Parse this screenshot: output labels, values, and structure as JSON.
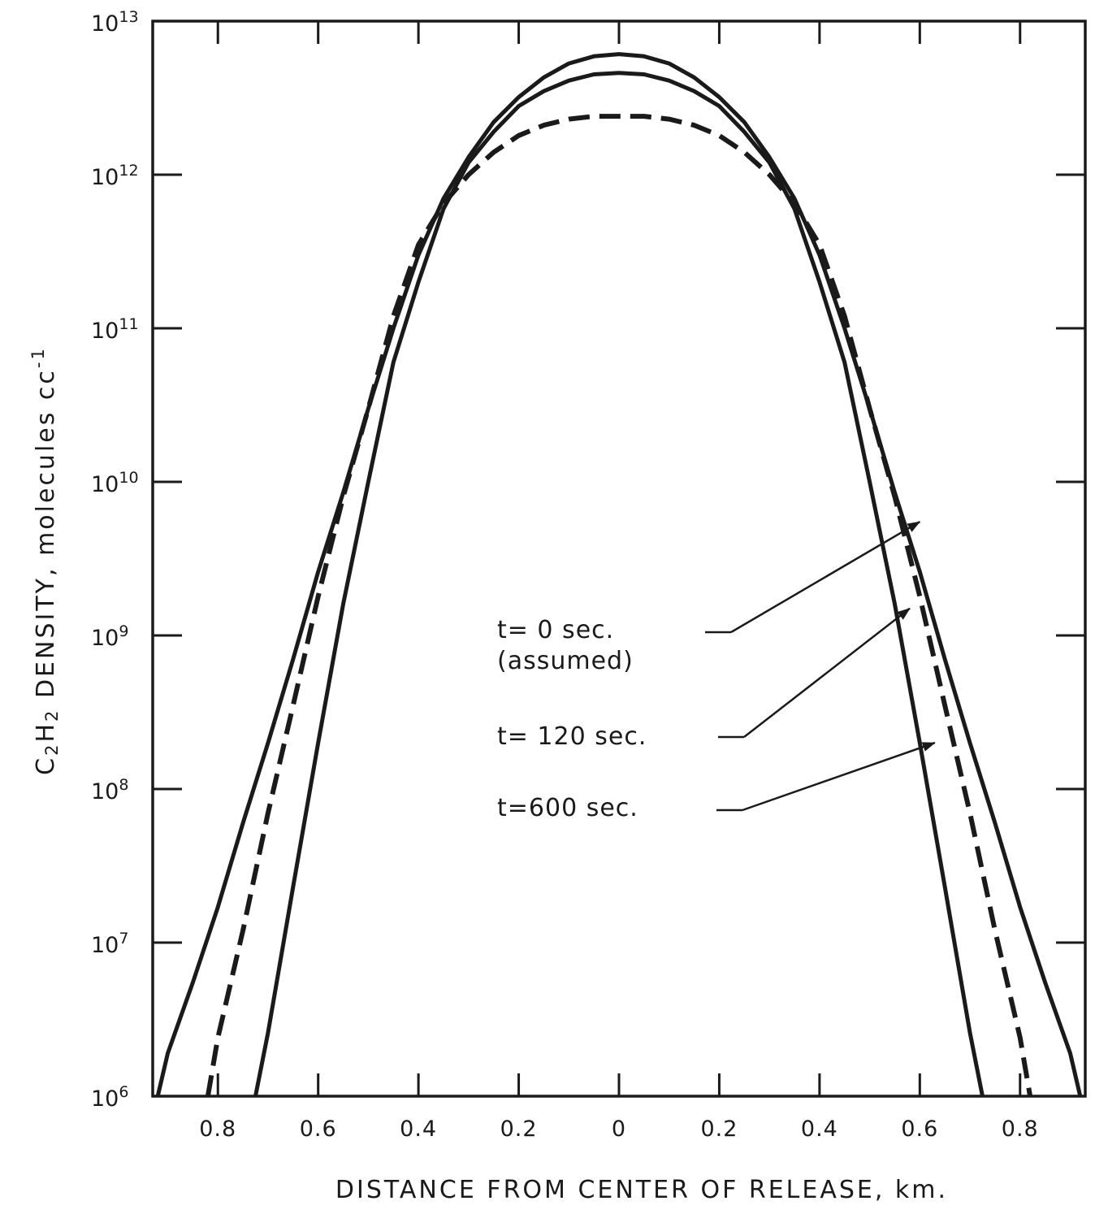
{
  "chart_data": {
    "type": "line",
    "title": "",
    "xlabel": "DISTANCE FROM CENTER OF RELEASE, km.",
    "ylabel": "C2H2 DENSITY, molecules cc-1",
    "ylabel_parts": {
      "c": "C",
      "sub1": "2",
      "h": "H",
      "sub2": "2",
      "rest": " DENSITY, molecules cc",
      "sup": "-1"
    },
    "x_scale": "linear",
    "y_scale": "log",
    "xlim": [
      -0.93,
      0.93
    ],
    "ylim": [
      1000000,
      10000000000000
    ],
    "x_tick_values": [
      -0.8,
      -0.6,
      -0.4,
      -0.2,
      0,
      0.2,
      0.4,
      0.6,
      0.8
    ],
    "x_tick_labels": [
      "0.8",
      "0.6",
      "0.4",
      "0.2",
      "0",
      "0.2",
      "0.4",
      "0.6",
      "0.8"
    ],
    "y_tick_labels": [
      {
        "base": "10",
        "exp": "6"
      },
      {
        "base": "10",
        "exp": "7"
      },
      {
        "base": "10",
        "exp": "8"
      },
      {
        "base": "10",
        "exp": "9"
      },
      {
        "base": "10",
        "exp": "10"
      },
      {
        "base": "10",
        "exp": "11"
      },
      {
        "base": "10",
        "exp": "12"
      },
      {
        "base": "10",
        "exp": "13"
      }
    ],
    "grid": false,
    "legend": "none",
    "series": [
      {
        "label": "t= 0 sec. (assumed)",
        "style": "solid",
        "x": [
          -0.725,
          -0.7,
          -0.65,
          -0.6,
          -0.55,
          -0.5,
          -0.45,
          -0.4,
          -0.35,
          -0.3,
          -0.25,
          -0.2,
          -0.15,
          -0.1,
          -0.05,
          0,
          0.05,
          0.1,
          0.15,
          0.2,
          0.25,
          0.3,
          0.35,
          0.4,
          0.45,
          0.5,
          0.55,
          0.6,
          0.65,
          0.7,
          0.725
        ],
        "y": [
          1000000,
          2600000,
          23000000,
          200000000,
          1600000000,
          10000000000,
          60000000000,
          200000000000,
          600000000000,
          1200000000000,
          1900000000000,
          2800000000000,
          3500000000000,
          4100000000000,
          4500000000000,
          4600000000000,
          4500000000000,
          4100000000000,
          3500000000000,
          2800000000000,
          1900000000000,
          1200000000000,
          600000000000,
          200000000000,
          60000000000,
          10000000000,
          1600000000,
          200000000,
          23000000,
          2600000,
          1000000
        ]
      },
      {
        "label": "t= 120 sec.",
        "style": "solid",
        "x": [
          -0.92,
          -0.9,
          -0.85,
          -0.8,
          -0.75,
          -0.7,
          -0.65,
          -0.6,
          -0.55,
          -0.5,
          -0.45,
          -0.4,
          -0.35,
          -0.3,
          -0.25,
          -0.2,
          -0.15,
          -0.1,
          -0.05,
          0,
          0.05,
          0.1,
          0.15,
          0.2,
          0.25,
          0.3,
          0.35,
          0.4,
          0.45,
          0.5,
          0.55,
          0.6,
          0.65,
          0.7,
          0.75,
          0.8,
          0.85,
          0.9,
          0.92
        ],
        "y": [
          1000000,
          1900000,
          5500000,
          17000000,
          60000000,
          200000000,
          700000000,
          2600000000,
          8500000000,
          30000000000,
          100000000000,
          300000000000,
          700000000000,
          1300000000000,
          2200000000000,
          3200000000000,
          4300000000000,
          5300000000000,
          5900000000000,
          6100000000000,
          5900000000000,
          5300000000000,
          4300000000000,
          3200000000000,
          2200000000000,
          1300000000000,
          700000000000,
          300000000000,
          100000000000,
          30000000000,
          8500000000,
          2600000000,
          700000000,
          200000000,
          60000000,
          17000000,
          5500000,
          1900000,
          1000000
        ]
      },
      {
        "label": "t=600 sec.",
        "style": "dashed",
        "x": [
          -0.82,
          -0.8,
          -0.75,
          -0.7,
          -0.65,
          -0.6,
          -0.55,
          -0.5,
          -0.45,
          -0.4,
          -0.35,
          -0.3,
          -0.25,
          -0.2,
          -0.15,
          -0.1,
          -0.05,
          0,
          0.05,
          0.1,
          0.15,
          0.2,
          0.25,
          0.3,
          0.35,
          0.4,
          0.45,
          0.5,
          0.55,
          0.6,
          0.65,
          0.7,
          0.75,
          0.8,
          0.82
        ],
        "y": [
          1000000,
          2400000,
          12000000,
          70000000,
          350000000,
          1800000000,
          8000000000,
          30000000000,
          120000000000,
          350000000000,
          650000000000,
          1000000000000,
          1400000000000,
          1800000000000,
          2100000000000,
          2300000000000,
          2400000000000,
          2400000000000,
          2400000000000,
          2300000000000,
          2100000000000,
          1800000000000,
          1400000000000,
          1000000000000,
          650000000000,
          350000000000,
          120000000000,
          30000000000,
          8000000000,
          1800000000,
          350000000,
          70000000,
          12000000,
          2400000,
          1000000
        ]
      }
    ],
    "annotations": [
      {
        "line1": "t= 0  sec.",
        "line2": "(assumed)",
        "points_to": "t= 0 sec. (assumed)",
        "arrow_target": {
          "x": 0.6,
          "y": 5500000000
        }
      },
      {
        "line1": "t= 120   sec.",
        "points_to": "t= 120 sec.",
        "arrow_target": {
          "x": 0.58,
          "y": 1500000000
        }
      },
      {
        "line1": "t=600   sec.",
        "points_to": "t=600 sec.",
        "arrow_target": {
          "x": 0.63,
          "y": 200000000
        }
      }
    ]
  }
}
